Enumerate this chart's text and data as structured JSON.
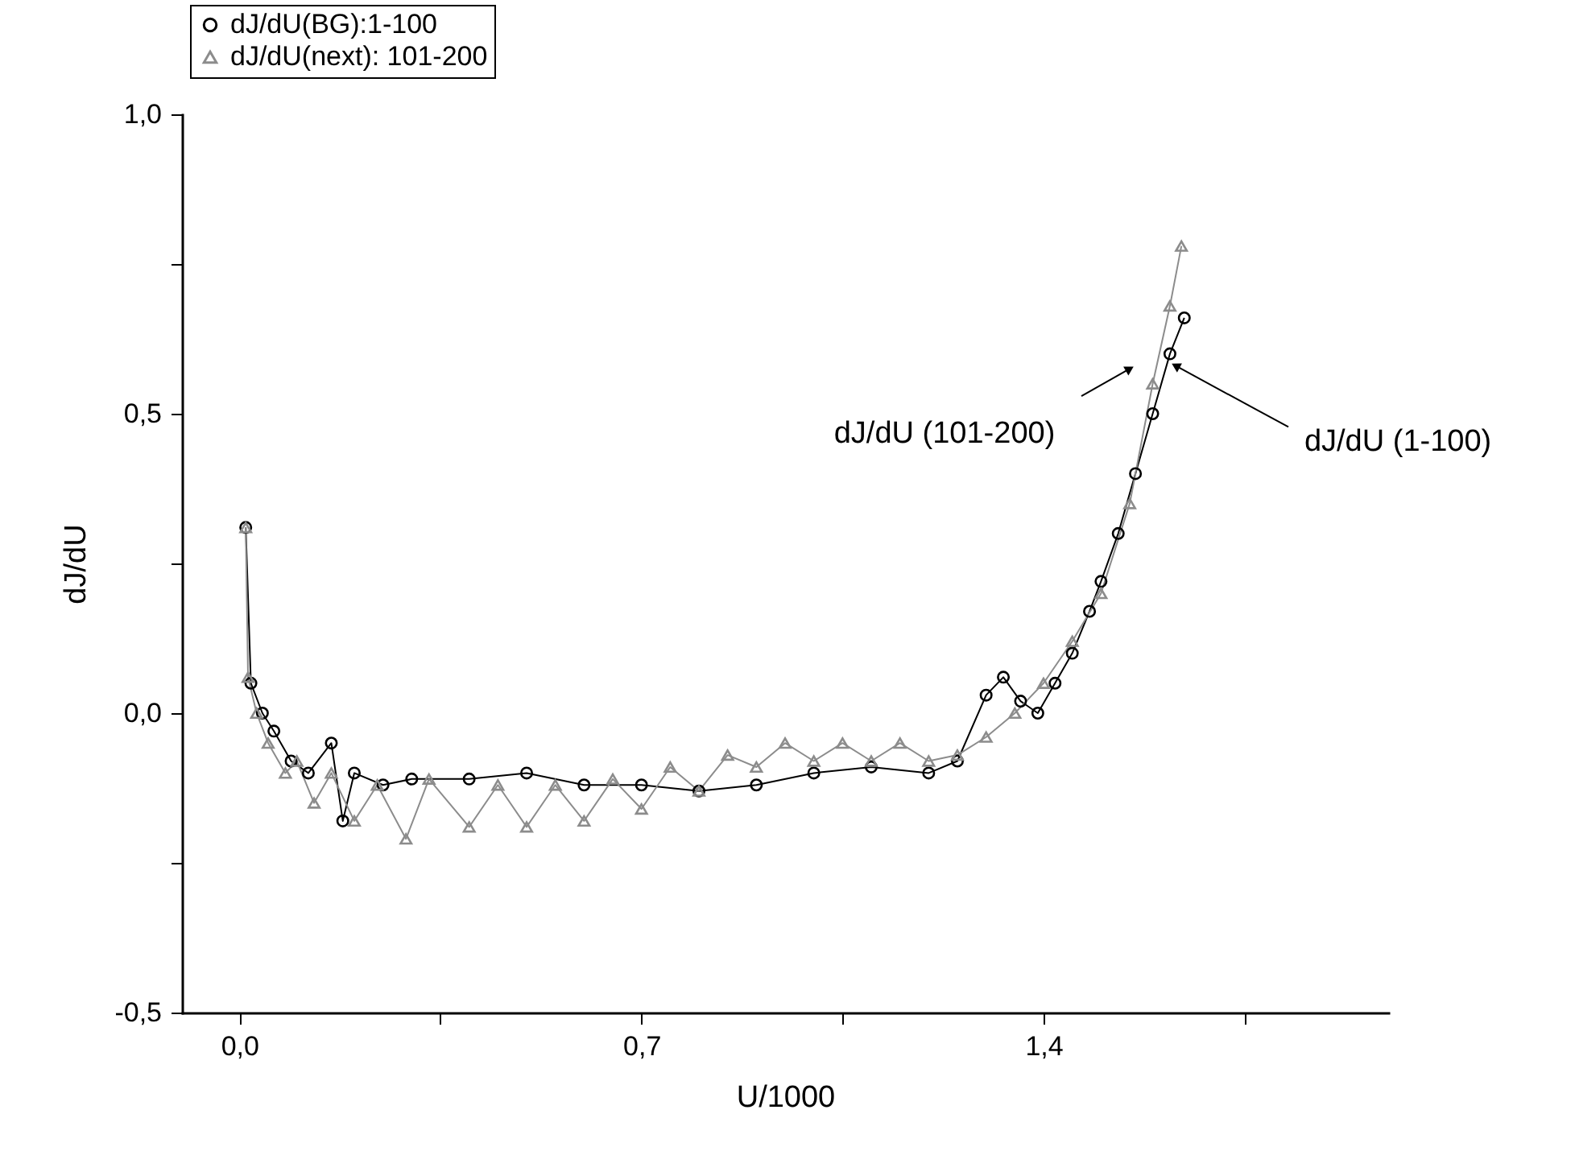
{
  "chart_data": {
    "type": "line",
    "xlabel": "U/1000",
    "ylabel": "dJ/dU",
    "xlim": [
      -0.1,
      2.0
    ],
    "ylim": [
      -0.5,
      1.0
    ],
    "xticks": [
      {
        "value": 0,
        "label": "0,0"
      },
      {
        "value": 0.35,
        "label": null
      },
      {
        "value": 0.7,
        "label": "0,7"
      },
      {
        "value": 1.05,
        "label": null
      },
      {
        "value": 1.4,
        "label": "1,4"
      },
      {
        "value": 1.75,
        "label": null
      }
    ],
    "yticks": [
      {
        "value": -0.5,
        "label": "-0,5"
      },
      {
        "value": -0.25,
        "label": null
      },
      {
        "value": 0,
        "label": "0,0"
      },
      {
        "value": 0.25,
        "label": null
      },
      {
        "value": 0.5,
        "label": "0,5"
      },
      {
        "value": 0.75,
        "label": null
      },
      {
        "value": 1.0,
        "label": "1,0"
      }
    ],
    "grid": false,
    "legend": "top left",
    "line_style": "solid",
    "series": [
      {
        "name": "dJ/dU(BG):1-100",
        "color": "#000000",
        "marker": "circle",
        "x": [
          0.011,
          0.02,
          0.04,
          0.06,
          0.09,
          0.12,
          0.16,
          0.18,
          0.2,
          0.25,
          0.3,
          0.4,
          0.5,
          0.6,
          0.7,
          0.8,
          0.9,
          1.0,
          1.1,
          1.2,
          1.25,
          1.3,
          1.33,
          1.36,
          1.39,
          1.42,
          1.45,
          1.48,
          1.5,
          1.53,
          1.56,
          1.59,
          1.62,
          1.645
        ],
        "values": [
          0.31,
          0.05,
          0.0,
          -0.03,
          -0.08,
          -0.1,
          -0.05,
          -0.18,
          -0.1,
          -0.12,
          -0.11,
          -0.11,
          -0.1,
          -0.12,
          -0.12,
          -0.13,
          -0.12,
          -0.1,
          -0.09,
          -0.1,
          -0.08,
          0.03,
          0.06,
          0.02,
          0.0,
          0.05,
          0.1,
          0.17,
          0.22,
          0.3,
          0.4,
          0.5,
          0.6,
          0.66
        ]
      },
      {
        "name": "dJ/dU(next): 101-200",
        "color": "#8c8c8c",
        "marker": "triangle",
        "x": [
          0.011,
          0.015,
          0.03,
          0.05,
          0.08,
          0.1,
          0.13,
          0.16,
          0.2,
          0.24,
          0.29,
          0.33,
          0.4,
          0.45,
          0.5,
          0.55,
          0.6,
          0.65,
          0.7,
          0.75,
          0.8,
          0.85,
          0.9,
          0.95,
          1.0,
          1.05,
          1.1,
          1.15,
          1.2,
          1.25,
          1.3,
          1.35,
          1.4,
          1.45,
          1.5,
          1.55,
          1.59,
          1.62,
          1.64
        ],
        "values": [
          0.31,
          0.06,
          0.0,
          -0.05,
          -0.1,
          -0.08,
          -0.15,
          -0.1,
          -0.18,
          -0.12,
          -0.21,
          -0.11,
          -0.19,
          -0.12,
          -0.19,
          -0.12,
          -0.18,
          -0.11,
          -0.16,
          -0.09,
          -0.13,
          -0.07,
          -0.09,
          -0.05,
          -0.08,
          -0.05,
          -0.08,
          -0.05,
          -0.08,
          -0.07,
          -0.04,
          0.0,
          0.05,
          0.12,
          0.2,
          0.35,
          0.55,
          0.68,
          0.78
        ]
      }
    ],
    "annotations": [
      {
        "text": "dJ/dU (101-200)",
        "x": 1.55,
        "y": 0.575
      },
      {
        "text": "dJ/dU (1-100)",
        "x": 1.63,
        "y": 0.58
      }
    ]
  }
}
